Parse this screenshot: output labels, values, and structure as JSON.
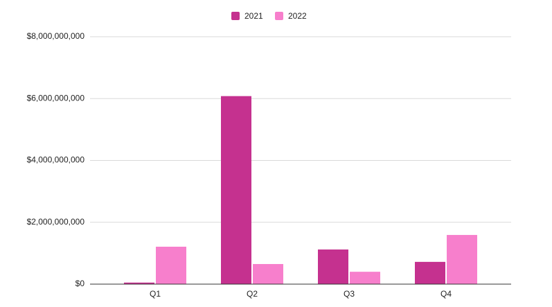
{
  "chart_data": {
    "type": "bar",
    "categories": [
      "Q1",
      "Q2",
      "Q3",
      "Q4"
    ],
    "series": [
      {
        "name": "2021",
        "color": "#c5318f",
        "values": [
          50000000,
          6080000000,
          1120000000,
          720000000
        ]
      },
      {
        "name": "2022",
        "color": "#f77fcc",
        "values": [
          1210000000,
          650000000,
          400000000,
          1590000000
        ]
      }
    ],
    "ylim": [
      0,
      8000000000
    ],
    "yticks": [
      {
        "value": 0,
        "label": "$0"
      },
      {
        "value": 2000000000,
        "label": "$2,000,000,000"
      },
      {
        "value": 4000000000,
        "label": "$4,000,000,000"
      },
      {
        "value": 6000000000,
        "label": "$6,000,000,000"
      },
      {
        "value": 8000000000,
        "label": "$8,000,000,000"
      }
    ],
    "grid": true
  }
}
